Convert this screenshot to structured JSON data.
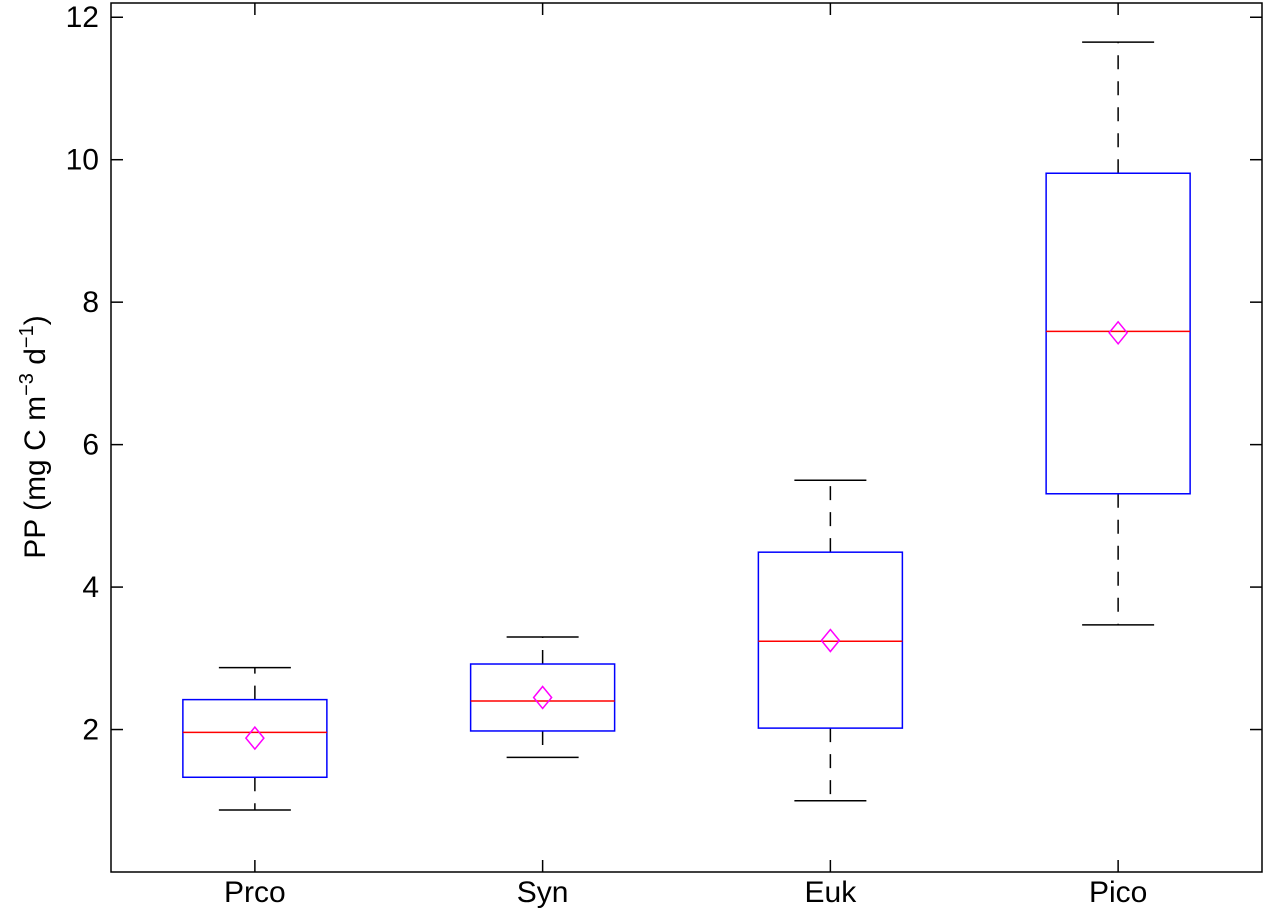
{
  "chart_data": {
    "type": "box",
    "title": "",
    "xlabel": "",
    "ylabel": {
      "parts": [
        "PP (mg C m",
        "−3",
        " d",
        "−1",
        ")"
      ]
    },
    "categories": [
      "Prco",
      "Syn",
      "Euk",
      "Pico"
    ],
    "ylim": [
      0,
      12.2
    ],
    "yticks": [
      2,
      4,
      6,
      8,
      10,
      12
    ],
    "grid": false,
    "boxes": [
      {
        "category": "Prco",
        "whisker_low": 0.87,
        "q1": 1.33,
        "median": 1.96,
        "q3": 2.42,
        "whisker_high": 2.87,
        "mean": 1.88
      },
      {
        "category": "Syn",
        "whisker_low": 1.61,
        "q1": 1.98,
        "median": 2.4,
        "q3": 2.92,
        "whisker_high": 3.3,
        "mean": 2.45
      },
      {
        "category": "Euk",
        "whisker_low": 1.0,
        "q1": 2.02,
        "median": 3.24,
        "q3": 4.49,
        "whisker_high": 5.5,
        "mean": 3.25
      },
      {
        "category": "Pico",
        "whisker_low": 3.47,
        "q1": 5.31,
        "median": 7.59,
        "q3": 9.81,
        "whisker_high": 11.65,
        "mean": 7.57
      }
    ],
    "colors": {
      "box": "#0000ff",
      "median": "#ff0000",
      "mean_marker": "#ff00ff",
      "whisker": "#000000"
    }
  }
}
